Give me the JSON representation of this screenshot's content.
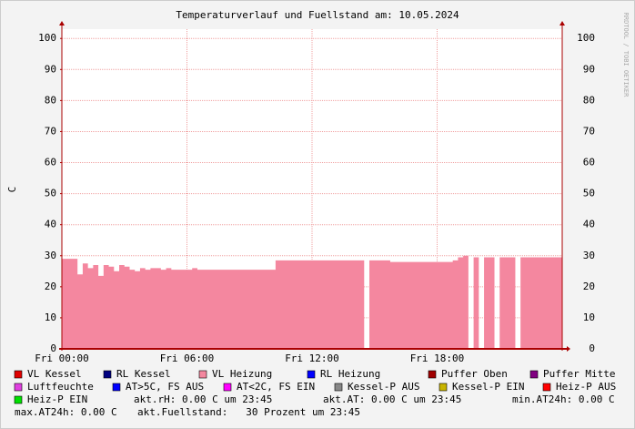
{
  "chart_data": {
    "type": "area",
    "title": "Temperaturverlauf und Fuellstand am: 10.05.2024",
    "y_label": "C",
    "side_text": "RRDTOOL / TOBI OETIKER",
    "xlim": [
      0,
      24
    ],
    "ylim": [
      0,
      103
    ],
    "xticks": [
      {
        "value": 0,
        "label": "Fri 00:00"
      },
      {
        "value": 6,
        "label": "Fri 06:00"
      },
      {
        "value": 12,
        "label": "Fri 12:00"
      },
      {
        "value": 18,
        "label": "Fri 18:00"
      }
    ],
    "yticks": [
      0,
      10,
      20,
      30,
      40,
      50,
      60,
      70,
      80,
      90,
      100
    ],
    "grid": true,
    "x": [
      0,
      0.25,
      0.5,
      0.75,
      1,
      1.25,
      1.5,
      1.75,
      2,
      2.25,
      2.5,
      2.75,
      3,
      3.25,
      3.5,
      3.75,
      4,
      4.25,
      4.5,
      4.75,
      5,
      5.25,
      5.5,
      5.75,
      6,
      6.25,
      6.5,
      6.75,
      7,
      7.25,
      7.5,
      7.75,
      8,
      8.25,
      8.5,
      8.75,
      9,
      9.25,
      9.5,
      9.75,
      10,
      10.25,
      10.5,
      10.75,
      11,
      11.25,
      11.5,
      11.75,
      12,
      12.25,
      12.5,
      12.75,
      13,
      13.25,
      13.5,
      13.75,
      14,
      14.25,
      14.5,
      14.75,
      15,
      15.25,
      15.5,
      15.75,
      16,
      16.25,
      16.5,
      16.75,
      17,
      17.25,
      17.5,
      17.75,
      18,
      18.25,
      18.5,
      18.75,
      19,
      19.25,
      19.5,
      19.75,
      20,
      20.25,
      20.5,
      20.75,
      21,
      21.25,
      21.5,
      21.75,
      22,
      22.25,
      22.5,
      22.75,
      23,
      23.25,
      23.5,
      23.75
    ],
    "series": [
      {
        "name": "VL Kessel",
        "color": "#e00000"
      },
      {
        "name": "RL Kessel",
        "color": "#000080"
      },
      {
        "name": "VL Heizung",
        "color": "#f4879f",
        "values": [
          29,
          29,
          29,
          24,
          27.5,
          26,
          27,
          23.5,
          27,
          26.5,
          25,
          27,
          26.5,
          25.5,
          25,
          26,
          25.5,
          26,
          26,
          25.5,
          26,
          25.5,
          25.5,
          25.5,
          25.5,
          26,
          25.5,
          25.5,
          25.5,
          25.5,
          25.5,
          25.5,
          25.5,
          25.5,
          25.5,
          25.5,
          25.5,
          25.5,
          25.5,
          25.5,
          25.5,
          28.5,
          28.5,
          28.5,
          28.5,
          28.5,
          28.5,
          28.5,
          28.5,
          28.5,
          28.5,
          28.5,
          28.5,
          28.5,
          28.5,
          28.5,
          28.5,
          28.5,
          null,
          28.5,
          28.5,
          28.5,
          28.5,
          28,
          28,
          28,
          28,
          28,
          28,
          28,
          28,
          28,
          28,
          28,
          28,
          28.5,
          29.5,
          30,
          null,
          29.5,
          null,
          29.5,
          29.5,
          null,
          29.5,
          29.5,
          29.5,
          null,
          29.5,
          29.5,
          29.5,
          29.5,
          29.5,
          29.5,
          29.5,
          29.5
        ]
      },
      {
        "name": "RL Heizung",
        "color": "#0000ff"
      },
      {
        "name": "Puffer Oben",
        "color": "#a00000"
      },
      {
        "name": "Puffer Mitte",
        "color": "#800080"
      },
      {
        "name": "Luftfeuchte",
        "color": "#e040e0"
      },
      {
        "name": "AT>5C, FS AUS",
        "color": "#0000ff"
      },
      {
        "name": "AT<2C, FS EIN",
        "color": "#ff00ff"
      },
      {
        "name": "Kessel-P AUS",
        "color": "#888888"
      },
      {
        "name": "Kessel-P EIN",
        "color": "#c8b400"
      },
      {
        "name": "Heiz-P AUS",
        "color": "#ff0000"
      },
      {
        "name": "Heiz-P EIN",
        "color": "#00e000"
      }
    ],
    "notes": [
      "akt.rH: 0.00 C um 23:45",
      "akt.AT: 0.00 C um 23:45",
      "min.AT24h: 0.00 C",
      "max.AT24h: 0.00 C",
      "akt.Fuellstand:   30 Prozent um 23:45"
    ]
  }
}
